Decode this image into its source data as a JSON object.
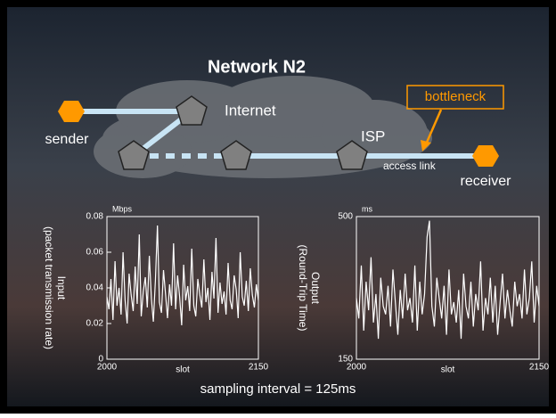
{
  "title": "Network N2",
  "diagram": {
    "sender": "sender",
    "receiver": "receiver",
    "internet": "Internet",
    "isp": "ISP",
    "bottleneck": "bottleneck",
    "access_link": "access link"
  },
  "caption": "sampling interval = 125ms",
  "chart_data": [
    {
      "type": "line",
      "ylabel": [
        "Input",
        "(packet transmission rate)"
      ],
      "xlabel": "slot",
      "y_unit": "Mbps",
      "color": "#ffffff",
      "xlim": [
        2000,
        2150
      ],
      "xticks": [
        2000,
        2150
      ],
      "ylim": [
        0,
        0.08
      ],
      "yticks": [
        0,
        0.02,
        0.04,
        0.06,
        0.08
      ],
      "x": [
        2000,
        2002,
        2004,
        2006,
        2008,
        2010,
        2012,
        2014,
        2016,
        2018,
        2020,
        2022,
        2024,
        2026,
        2028,
        2030,
        2032,
        2034,
        2036,
        2038,
        2040,
        2042,
        2044,
        2046,
        2048,
        2050,
        2052,
        2054,
        2056,
        2058,
        2060,
        2062,
        2064,
        2066,
        2068,
        2070,
        2072,
        2074,
        2076,
        2078,
        2080,
        2082,
        2084,
        2086,
        2088,
        2090,
        2092,
        2094,
        2096,
        2098,
        2100,
        2102,
        2104,
        2106,
        2108,
        2110,
        2112,
        2114,
        2116,
        2118,
        2120,
        2122,
        2124,
        2126,
        2128,
        2130,
        2132,
        2134,
        2136,
        2138,
        2140,
        2142,
        2144,
        2146,
        2148,
        2150
      ],
      "values": [
        0.035,
        0.028,
        0.045,
        0.022,
        0.055,
        0.03,
        0.04,
        0.025,
        0.06,
        0.033,
        0.02,
        0.048,
        0.036,
        0.027,
        0.052,
        0.031,
        0.07,
        0.024,
        0.038,
        0.046,
        0.029,
        0.058,
        0.034,
        0.021,
        0.044,
        0.075,
        0.032,
        0.026,
        0.05,
        0.037,
        0.023,
        0.042,
        0.03,
        0.065,
        0.028,
        0.047,
        0.035,
        0.019,
        0.053,
        0.033,
        0.041,
        0.027,
        0.062,
        0.03,
        0.024,
        0.045,
        0.036,
        0.029,
        0.056,
        0.032,
        0.04,
        0.022,
        0.049,
        0.034,
        0.068,
        0.026,
        0.043,
        0.031,
        0.038,
        0.025,
        0.054,
        0.033,
        0.028,
        0.047,
        0.039,
        0.023,
        0.06,
        0.035,
        0.03,
        0.044,
        0.027,
        0.051,
        0.036,
        0.029,
        0.042,
        0.033
      ]
    },
    {
      "type": "line",
      "ylabel": [
        "Output",
        "(Round-Trip Time)"
      ],
      "xlabel": "slot",
      "y_unit": "ms",
      "color": "#ffffff",
      "xlim": [
        2000,
        2150
      ],
      "xticks": [
        2000,
        2150
      ],
      "ylim": [
        150,
        500
      ],
      "yticks": [
        150,
        500
      ],
      "x": [
        2000,
        2002,
        2004,
        2006,
        2008,
        2010,
        2012,
        2014,
        2016,
        2018,
        2020,
        2022,
        2024,
        2026,
        2028,
        2030,
        2032,
        2034,
        2036,
        2038,
        2040,
        2042,
        2044,
        2046,
        2048,
        2050,
        2052,
        2054,
        2056,
        2058,
        2060,
        2062,
        2064,
        2066,
        2068,
        2070,
        2072,
        2074,
        2076,
        2078,
        2080,
        2082,
        2084,
        2086,
        2088,
        2090,
        2092,
        2094,
        2096,
        2098,
        2100,
        2102,
        2104,
        2106,
        2108,
        2110,
        2112,
        2114,
        2116,
        2118,
        2120,
        2122,
        2124,
        2126,
        2128,
        2130,
        2132,
        2134,
        2136,
        2138,
        2140,
        2142,
        2144,
        2146,
        2148,
        2150
      ],
      "values": [
        300,
        250,
        380,
        220,
        340,
        270,
        400,
        240,
        310,
        200,
        350,
        280,
        260,
        330,
        230,
        370,
        290,
        210,
        320,
        250,
        360,
        270,
        300,
        240,
        380,
        220,
        340,
        260,
        310,
        450,
        490,
        280,
        230,
        350,
        300,
        250,
        330,
        210,
        370,
        260,
        290,
        240,
        320,
        200,
        360,
        280,
        250,
        340,
        230,
        310,
        270,
        390,
        220,
        300,
        260,
        350,
        240,
        330,
        210,
        290,
        360,
        250,
        320,
        270,
        230,
        340,
        280,
        310,
        250,
        370,
        260,
        300,
        390,
        240,
        330,
        280
      ]
    }
  ]
}
